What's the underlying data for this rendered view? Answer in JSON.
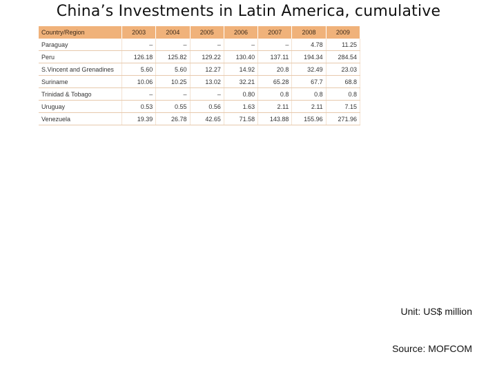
{
  "title": "China’s Investments in Latin America, cumulative",
  "table": {
    "headers": [
      "Country/Region",
      "2003",
      "2004",
      "2005",
      "2006",
      "2007",
      "2008",
      "2009"
    ],
    "rows": [
      [
        "Paraguay",
        "–",
        "–",
        "–",
        "–",
        "–",
        "4.78",
        "11.25"
      ],
      [
        "Peru",
        "126.18",
        "125.82",
        "129.22",
        "130.40",
        "137.11",
        "194.34",
        "284.54"
      ],
      [
        "S.Vincent and Grenadines",
        "5.60",
        "5.60",
        "12.27",
        "14.92",
        "20.8",
        "32.49",
        "23.03"
      ],
      [
        "Suriname",
        "10.06",
        "10.25",
        "13.02",
        "32.21",
        "65.28",
        "67.7",
        "68.8"
      ],
      [
        "Trinidad & Tobago",
        "–",
        "–",
        "–",
        "0.80",
        "0.8",
        "0.8",
        "0.8"
      ],
      [
        "Uruguay",
        "0.53",
        "0.55",
        "0.56",
        "1.63",
        "2.11",
        "2.11",
        "7.15"
      ],
      [
        "Venezuela",
        "19.39",
        "26.78",
        "42.65",
        "71.58",
        "143.88",
        "155.96",
        "271.96"
      ]
    ]
  },
  "unit": "Unit: US$ million",
  "source": "Source: MOFCOM",
  "colors": {
    "header_background": "#f0b27a",
    "row_rule": "#e7c9ac"
  }
}
